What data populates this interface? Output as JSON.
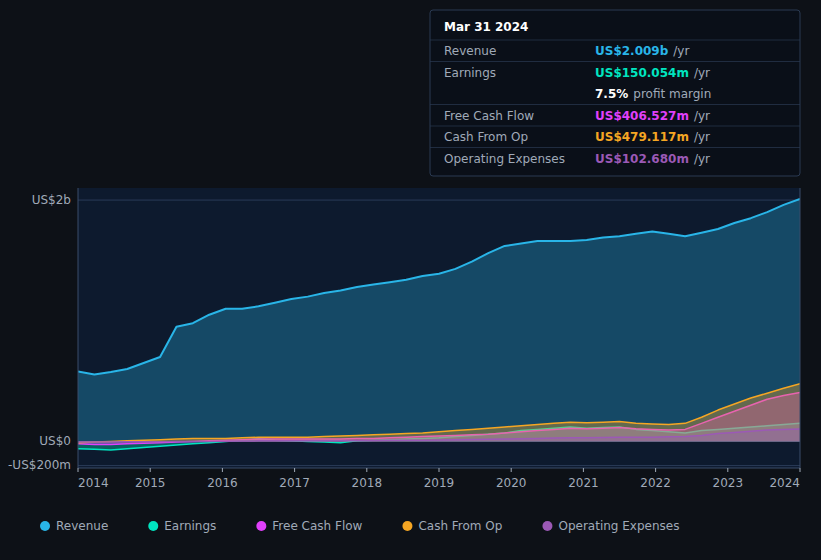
{
  "chart_data": {
    "type": "area",
    "xlim": [
      2014,
      2024
    ],
    "xticks": [
      2014,
      2015,
      2016,
      2017,
      2018,
      2019,
      2020,
      2021,
      2022,
      2023,
      2024
    ],
    "ylim": [
      -220,
      2100
    ],
    "yticks": [
      {
        "value": -200,
        "label": "-US$200m"
      },
      {
        "value": 0,
        "label": "US$0"
      },
      {
        "value": 2000,
        "label": "US$2b"
      }
    ],
    "grid": true,
    "legend": "bottom",
    "series": [
      {
        "name": "Revenue",
        "color": "#29b5e8",
        "values": [
          580,
          555,
          575,
          600,
          650,
          700,
          950,
          980,
          1050,
          1100,
          1100,
          1120,
          1150,
          1180,
          1200,
          1230,
          1250,
          1280,
          1300,
          1320,
          1340,
          1370,
          1390,
          1430,
          1490,
          1560,
          1620,
          1640,
          1660,
          1660,
          1660,
          1670,
          1690,
          1700,
          1720,
          1740,
          1720,
          1700,
          1730,
          1760,
          1810,
          1850,
          1900,
          1960,
          2010
        ]
      },
      {
        "name": "Earnings",
        "color": "#00e5c0",
        "values": [
          -60,
          -65,
          -70,
          -60,
          -50,
          -40,
          -30,
          -20,
          -10,
          0,
          10,
          20,
          10,
          5,
          0,
          -5,
          -10,
          5,
          10,
          15,
          20,
          25,
          30,
          40,
          50,
          60,
          70,
          90,
          100,
          110,
          120,
          110,
          115,
          120,
          100,
          90,
          80,
          70,
          90,
          100,
          110,
          120,
          130,
          140,
          150
        ]
      },
      {
        "name": "Free Cash Flow",
        "color": "#e040fb",
        "values": [
          -20,
          -25,
          -25,
          -20,
          -15,
          -10,
          -5,
          0,
          5,
          10,
          15,
          20,
          20,
          20,
          20,
          20,
          20,
          25,
          25,
          30,
          35,
          40,
          45,
          50,
          55,
          60,
          70,
          80,
          90,
          100,
          110,
          105,
          110,
          115,
          105,
          100,
          95,
          100,
          150,
          200,
          250,
          300,
          350,
          380,
          406
        ]
      },
      {
        "name": "Cash From Op",
        "color": "#f5a623",
        "values": [
          -10,
          -5,
          0,
          5,
          10,
          15,
          20,
          25,
          25,
          25,
          30,
          35,
          35,
          35,
          35,
          40,
          45,
          50,
          55,
          60,
          65,
          70,
          80,
          90,
          100,
          110,
          120,
          130,
          140,
          150,
          160,
          155,
          160,
          165,
          150,
          145,
          140,
          150,
          200,
          260,
          310,
          360,
          400,
          440,
          479
        ]
      },
      {
        "name": "Operating Expenses",
        "color": "#9b59b6",
        "values": [
          -5,
          -5,
          -5,
          -3,
          -2,
          -2,
          -1,
          0,
          0,
          2,
          3,
          5,
          5,
          5,
          5,
          5,
          6,
          7,
          8,
          9,
          10,
          10,
          12,
          14,
          16,
          18,
          20,
          22,
          25,
          28,
          30,
          30,
          32,
          35,
          35,
          35,
          38,
          40,
          50,
          65,
          75,
          85,
          95,
          100,
          103
        ]
      }
    ],
    "annotations": {
      "title": "Mar 31 2024",
      "rows": [
        {
          "label": "Revenue",
          "value": "US$2.009b",
          "suffix": "/yr",
          "color": "#29b5e8"
        },
        {
          "label": "Earnings",
          "value": "US$150.054m",
          "suffix": "/yr",
          "color": "#00e5c0"
        },
        {
          "value": "7.5%",
          "suffix": "profit margin",
          "color": "#ffffff"
        },
        {
          "label": "Free Cash Flow",
          "value": "US$406.527m",
          "suffix": "/yr",
          "color": "#e040fb"
        },
        {
          "label": "Cash From Op",
          "value": "US$479.117m",
          "suffix": "/yr",
          "color": "#f5a623"
        },
        {
          "label": "Operating Expenses",
          "value": "US$102.680m",
          "suffix": "/yr",
          "color": "#9b59b6"
        }
      ]
    }
  }
}
